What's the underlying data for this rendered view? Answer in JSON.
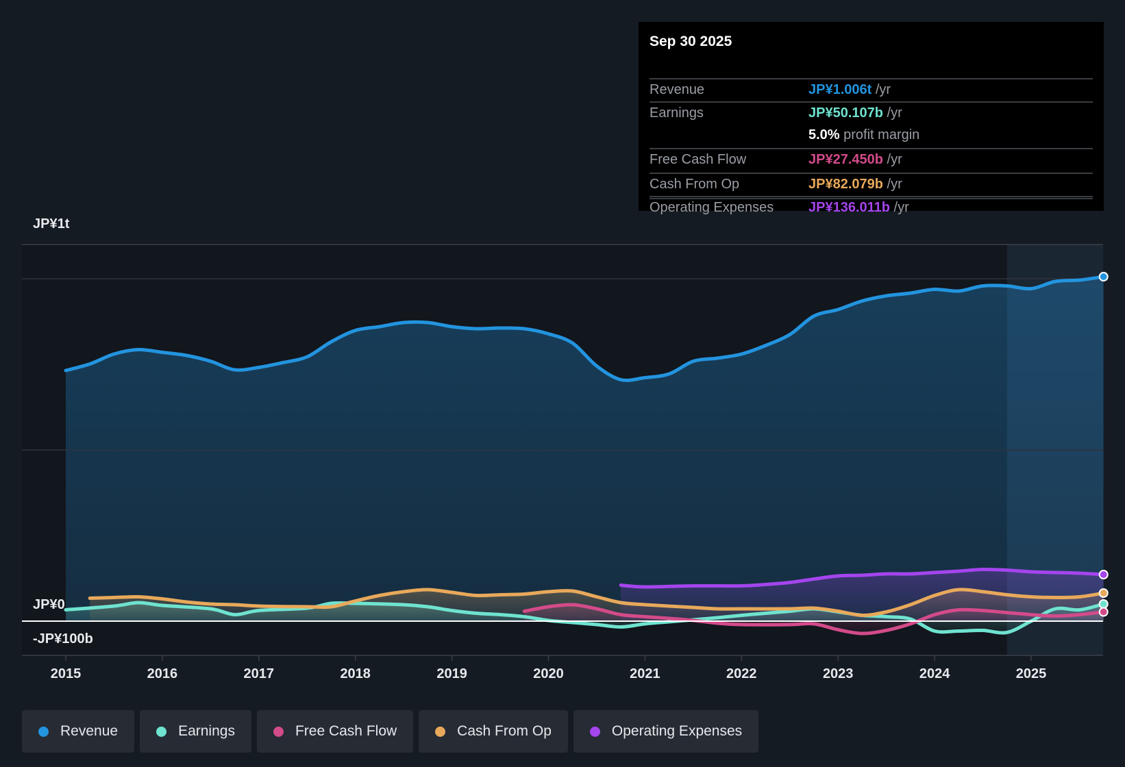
{
  "tooltip": {
    "date": "Sep 30 2025",
    "rows": [
      {
        "label": "Revenue",
        "value": "JP¥1.006t",
        "unit": "/yr",
        "color": "#2394df"
      },
      {
        "label": "Earnings",
        "value": "JP¥50.107b",
        "unit": "/yr",
        "color": "#6fe3cf"
      },
      {
        "label": "",
        "value": "5.0%",
        "unit": "profit margin",
        "color": "#ffffff"
      },
      {
        "label": "Free Cash Flow",
        "value": "JP¥27.450b",
        "unit": "/yr",
        "color": "#d34b8a"
      },
      {
        "label": "Cash From Op",
        "value": "JP¥82.079b",
        "unit": "/yr",
        "color": "#e8a95b"
      },
      {
        "label": "Operating Expenses",
        "value": "JP¥136.011b",
        "unit": "/yr",
        "color": "#a445ed"
      }
    ]
  },
  "chart_data": {
    "type": "line",
    "title": "",
    "xlabel": "",
    "ylabel": "",
    "units": "JP¥ billions",
    "xlim": [
      2014.55,
      2025.75
    ],
    "ylim": [
      -100,
      1100
    ],
    "y_tick_labels": [
      {
        "value": 1000,
        "label": "JP¥1t"
      },
      {
        "value": 0,
        "label": "JP¥0"
      },
      {
        "value": -100,
        "label": "-JP¥100b"
      }
    ],
    "gridlines": [
      1000,
      500
    ],
    "x_ticks": [
      2015,
      2016,
      2017,
      2018,
      2019,
      2020,
      2021,
      2022,
      2023,
      2024,
      2025
    ],
    "x_tick_labels": [
      "2015",
      "2016",
      "2017",
      "2018",
      "2019",
      "2020",
      "2021",
      "2022",
      "2023",
      "2024",
      "2025"
    ],
    "highlight_from": 2024.75,
    "series": [
      {
        "name": "Revenue",
        "color": "#2394df",
        "x": [
          2015,
          2015.25,
          2015.5,
          2015.75,
          2016,
          2016.25,
          2016.5,
          2016.75,
          2017,
          2017.25,
          2017.5,
          2017.75,
          2018,
          2018.25,
          2018.5,
          2018.75,
          2019,
          2019.25,
          2019.5,
          2019.75,
          2020,
          2020.25,
          2020.5,
          2020.75,
          2021,
          2021.25,
          2021.5,
          2021.75,
          2022,
          2022.25,
          2022.5,
          2022.75,
          2023,
          2023.25,
          2023.5,
          2023.75,
          2024,
          2024.25,
          2024.5,
          2024.75,
          2025,
          2025.25,
          2025.5,
          2025.75
        ],
        "values": [
          732,
          751,
          780,
          793,
          785,
          776,
          759,
          734,
          741,
          755,
          772,
          816,
          849,
          860,
          872,
          872,
          860,
          854,
          856,
          854,
          839,
          812,
          745,
          705,
          711,
          722,
          759,
          768,
          780,
          805,
          837,
          891,
          910,
          935,
          950,
          958,
          969,
          964,
          979,
          979,
          971,
          992,
          996,
          1006
        ]
      },
      {
        "name": "Earnings",
        "color": "#6fe3cf",
        "x": [
          2015,
          2015.5,
          2015.75,
          2016,
          2016.5,
          2016.75,
          2017,
          2017.5,
          2017.75,
          2018,
          2018.5,
          2018.75,
          2019,
          2019.25,
          2019.5,
          2019.75,
          2020,
          2020.25,
          2020.5,
          2020.75,
          2021,
          2021.25,
          2021.5,
          2021.75,
          2022,
          2022.25,
          2022.5,
          2022.75,
          2023,
          2023.25,
          2023.5,
          2023.75,
          2024,
          2024.25,
          2024.5,
          2024.75,
          2025,
          2025.25,
          2025.5,
          2025.75
        ],
        "values": [
          33,
          44,
          54,
          46,
          36,
          19,
          31,
          38,
          52,
          52,
          48,
          42,
          31,
          23,
          19,
          13,
          2,
          -4,
          -10,
          -17,
          -8,
          -2,
          4,
          10,
          17,
          23,
          29,
          36,
          27,
          17,
          13,
          6,
          -29,
          -29,
          -27,
          -33,
          0,
          36,
          33,
          50
        ]
      },
      {
        "name": "Free Cash Flow",
        "color": "#d34b8a",
        "x": [
          2019.75,
          2020,
          2020.25,
          2020.5,
          2020.75,
          2021,
          2021.25,
          2021.5,
          2021.75,
          2022,
          2022.5,
          2022.75,
          2023,
          2023.25,
          2023.5,
          2023.75,
          2024,
          2024.25,
          2024.5,
          2024.75,
          2025,
          2025.25,
          2025.5,
          2025.75
        ],
        "values": [
          29,
          42,
          48,
          36,
          19,
          13,
          8,
          2,
          -6,
          -10,
          -10,
          -8,
          -25,
          -36,
          -27,
          -8,
          19,
          33,
          31,
          25,
          19,
          15,
          19,
          27
        ]
      },
      {
        "name": "Cash From Op",
        "color": "#e8a95b",
        "x": [
          2015.25,
          2015.5,
          2015.75,
          2016,
          2016.25,
          2016.5,
          2016.75,
          2017,
          2017.5,
          2017.75,
          2018,
          2018.25,
          2018.5,
          2018.75,
          2019,
          2019.25,
          2019.5,
          2019.75,
          2020,
          2020.25,
          2020.5,
          2020.75,
          2021,
          2021.5,
          2021.75,
          2022,
          2022.5,
          2022.75,
          2023,
          2023.25,
          2023.5,
          2023.75,
          2024,
          2024.25,
          2024.5,
          2024.75,
          2025,
          2025.25,
          2025.5,
          2025.75
        ],
        "values": [
          67,
          69,
          71,
          65,
          56,
          50,
          48,
          44,
          42,
          42,
          59,
          75,
          86,
          92,
          84,
          75,
          77,
          79,
          86,
          88,
          71,
          54,
          48,
          40,
          36,
          36,
          36,
          38,
          29,
          17,
          27,
          48,
          75,
          92,
          86,
          77,
          71,
          69,
          71,
          82
        ]
      },
      {
        "name": "Operating Expenses",
        "color": "#a445ed",
        "x": [
          2020.75,
          2021,
          2021.5,
          2022,
          2022.25,
          2022.5,
          2022.75,
          2023,
          2023.25,
          2023.5,
          2023.75,
          2024,
          2024.25,
          2024.5,
          2024.75,
          2025,
          2025.25,
          2025.5,
          2025.75
        ],
        "values": [
          105,
          100,
          103,
          103,
          107,
          113,
          123,
          132,
          134,
          138,
          138,
          142,
          146,
          151,
          149,
          144,
          142,
          140,
          136
        ]
      }
    ],
    "legend": {
      "placement": "bottom-left",
      "entries": [
        "Revenue",
        "Earnings",
        "Free Cash Flow",
        "Cash From Op",
        "Operating Expenses"
      ]
    }
  }
}
